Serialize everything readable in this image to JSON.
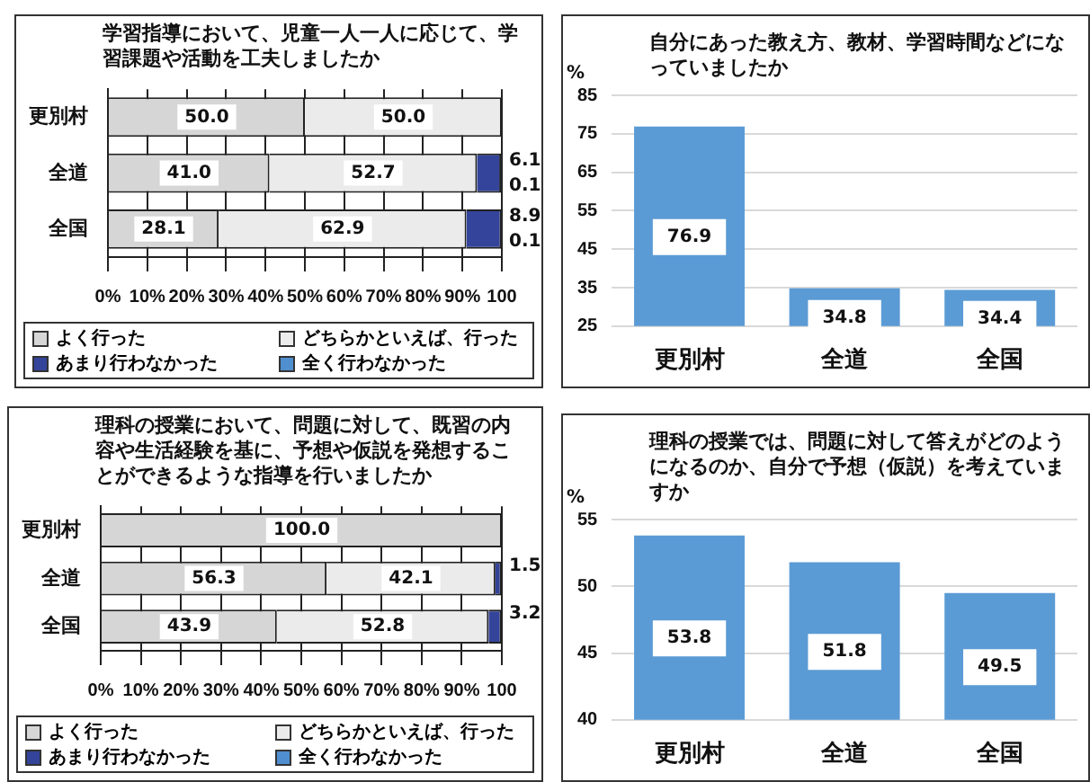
{
  "chart_data": [
    {
      "type": "bar",
      "orientation": "horizontal",
      "stacked": true,
      "title": "学習指導において、児童一人一人に応じて、学習課題や活動を工夫しましたか",
      "categories": [
        "更別村",
        "全道",
        "全国"
      ],
      "xlim": [
        0,
        100
      ],
      "xticks": [
        {
          "value": 0,
          "label": "0%"
        },
        {
          "value": 10,
          "label": "10%"
        },
        {
          "value": 20,
          "label": "20%"
        },
        {
          "value": 30,
          "label": "30%"
        },
        {
          "value": 40,
          "label": "40%"
        },
        {
          "value": 50,
          "label": "50%"
        },
        {
          "value": 60,
          "label": "60%"
        },
        {
          "value": 70,
          "label": "70%"
        },
        {
          "value": 80,
          "label": "80%"
        },
        {
          "value": 90,
          "label": "90%"
        },
        100
      ],
      "grid": "x",
      "legend": "bottom",
      "series": [
        {
          "name": "よく行った",
          "color": "#d6d6d6",
          "values": [
            50.0,
            41.0,
            28.1
          ],
          "value_labels": [
            "50.0",
            "41.0",
            "28.1"
          ]
        },
        {
          "name": "どちらかといえば、行った",
          "color": "#ebebeb",
          "values": [
            50.0,
            52.7,
            62.9
          ],
          "value_labels": [
            "50.0",
            "52.7",
            "62.9"
          ]
        },
        {
          "name": "あまり行わなかった",
          "color": "#34449a",
          "values": [
            null,
            6.1,
            8.9
          ],
          "value_labels": [
            null,
            "6.1",
            "8.9"
          ]
        },
        {
          "name": "全く行わなかった",
          "color": "#4f8fcf",
          "values": [
            null,
            0.1,
            0.1
          ],
          "value_labels": [
            null,
            "0.1",
            "0.1"
          ]
        }
      ]
    },
    {
      "type": "bar",
      "title": "自分にあった教え方、教材、学習時間などになっていましたか",
      "ylabel": "%",
      "categories": [
        "更別村",
        "全道",
        "全国"
      ],
      "values": [
        76.9,
        34.8,
        34.4
      ],
      "color": "#5b9bd5",
      "ylim": [
        25,
        85
      ],
      "yticks": [
        25,
        35,
        45,
        55,
        65,
        75,
        85
      ],
      "grid": "y",
      "data_labels": true
    },
    {
      "type": "bar",
      "orientation": "horizontal",
      "stacked": true,
      "title": "理科の授業において、問題に対して、既習の内容や生活経験を基に、予想や仮説を発想することができるような指導を行いましたか",
      "categories": [
        "更別村",
        "全道",
        "全国"
      ],
      "xlim": [
        0,
        100
      ],
      "xticks": [
        {
          "value": 0,
          "label": "0%"
        },
        {
          "value": 10,
          "label": "10%"
        },
        {
          "value": 20,
          "label": "20%"
        },
        {
          "value": 30,
          "label": "30%"
        },
        {
          "value": 40,
          "label": "40%"
        },
        {
          "value": 50,
          "label": "50%"
        },
        {
          "value": 60,
          "label": "60%"
        },
        {
          "value": 70,
          "label": "70%"
        },
        {
          "value": 80,
          "label": "80%"
        },
        {
          "value": 90,
          "label": "90%"
        },
        100
      ],
      "grid": "x",
      "legend": "bottom",
      "series": [
        {
          "name": "よく行った",
          "color": "#d6d6d6",
          "values": [
            100.0,
            56.3,
            43.9
          ],
          "value_labels": [
            "100.0",
            "56.3",
            "43.9"
          ]
        },
        {
          "name": "どちらかといえば、行った",
          "color": "#ebebeb",
          "values": [
            null,
            42.1,
            52.8
          ],
          "value_labels": [
            null,
            "42.1",
            "52.8"
          ]
        },
        {
          "name": "あまり行わなかった",
          "color": "#34449a",
          "values": [
            null,
            1.5,
            3.2
          ],
          "value_labels": [
            null,
            "1.5",
            "3.2"
          ]
        },
        {
          "name": "全く行わなかった",
          "color": "#4f8fcf",
          "values": [
            null,
            null,
            null
          ]
        }
      ]
    },
    {
      "type": "bar",
      "title": "理科の授業では、問題に対して答えがどのようになるのか、自分で予想（仮説）を考えていますか",
      "ylabel": "%",
      "categories": [
        "更別村",
        "全道",
        "全国"
      ],
      "values": [
        53.8,
        51.8,
        49.5
      ],
      "color": "#5b9bd5",
      "ylim": [
        40,
        55
      ],
      "yticks": [
        40,
        45,
        50,
        55
      ],
      "grid": "y",
      "data_labels": true
    }
  ]
}
